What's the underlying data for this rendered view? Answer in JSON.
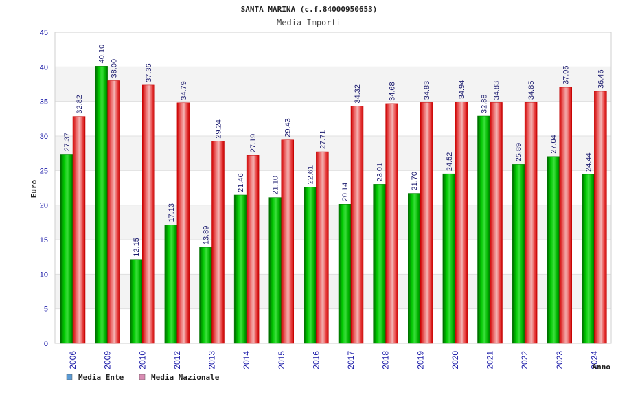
{
  "chart_data": {
    "type": "bar",
    "title": "SANTA MARINA (c.f.84000950653)",
    "subtitle": "Media Importi",
    "xlabel": "Anno",
    "ylabel": "Euro",
    "ylim": [
      0,
      45
    ],
    "yticks": [
      "0",
      "5",
      "10",
      "15",
      "20",
      "25",
      "30",
      "35",
      "40",
      "45"
    ],
    "grid": true,
    "legend_position": "bottom-left",
    "categories": [
      "2006",
      "2009",
      "2010",
      "2012",
      "2013",
      "2014",
      "2015",
      "2016",
      "2017",
      "2018",
      "2019",
      "2020",
      "2021",
      "2022",
      "2023",
      "2024"
    ],
    "series": [
      {
        "name": "Media Ente",
        "color": "#00a000",
        "legend_color": "#5b9bd5",
        "values": [
          27.37,
          40.1,
          12.15,
          17.13,
          13.89,
          21.46,
          21.1,
          22.61,
          20.14,
          23.01,
          21.7,
          24.52,
          32.88,
          25.89,
          27.04,
          24.44
        ],
        "labels": [
          "27.37",
          "40.10",
          "12.15",
          "17.13",
          "13.89",
          "21.46",
          "21.10",
          "22.61",
          "20.14",
          "23.01",
          "21.70",
          "24.52",
          "32.88",
          "25.89",
          "27.04",
          "24.44"
        ]
      },
      {
        "name": "Media Nazionale",
        "color": "#e51c23",
        "legend_color": "#d98cb3",
        "values": [
          32.82,
          38.0,
          37.36,
          34.79,
          29.24,
          27.19,
          29.43,
          27.71,
          34.32,
          34.68,
          34.83,
          34.94,
          34.83,
          34.85,
          37.05,
          36.46
        ],
        "labels": [
          "32.82",
          "38.00",
          "37.36",
          "34.79",
          "29.24",
          "27.19",
          "29.43",
          "27.71",
          "34.32",
          "34.68",
          "34.83",
          "34.94",
          "34.83",
          "34.85",
          "37.05",
          "36.46"
        ]
      }
    ]
  }
}
